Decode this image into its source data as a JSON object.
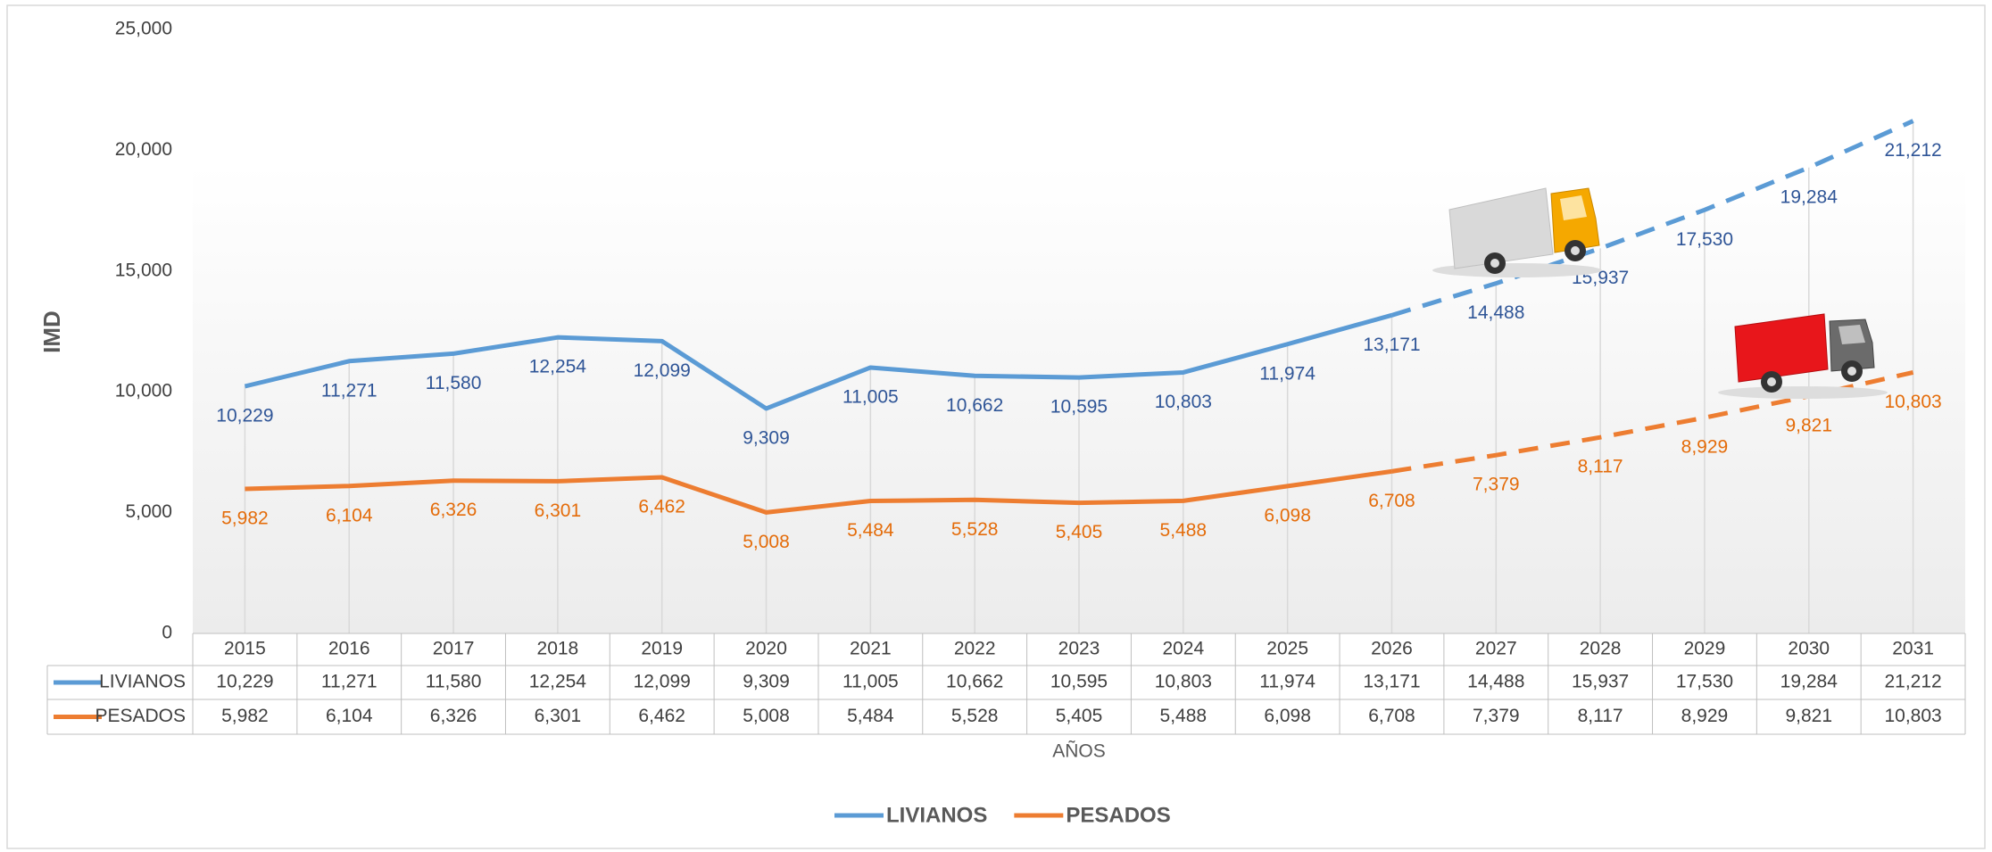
{
  "chart_data": {
    "type": "line",
    "y_label": "IMD",
    "x_label": "AÑOS",
    "categories": [
      "2015",
      "2016",
      "2017",
      "2018",
      "2019",
      "2020",
      "2021",
      "2022",
      "2023",
      "2024",
      "2025",
      "2026",
      "2027",
      "2028",
      "2029",
      "2030",
      "2031"
    ],
    "forecast_start": "2026",
    "series": [
      {
        "name": "LIVIANOS",
        "color": "#5b9bd5",
        "label_color": "#2f5597",
        "values": [
          10229,
          11271,
          11580,
          12254,
          12099,
          9309,
          11005,
          10662,
          10595,
          10803,
          11974,
          13171,
          14488,
          15937,
          17530,
          19284,
          21212
        ],
        "value_labels": [
          "10,229",
          "11,271",
          "11,580",
          "12,254",
          "12,099",
          "9,309",
          "11,005",
          "10,662",
          "10,595",
          "10,803",
          "11,974",
          "13,171",
          "14,488",
          "15,937",
          "17,530",
          "19,284",
          "21,212"
        ]
      },
      {
        "name": "PESADOS",
        "color": "#ed7d31",
        "label_color": "#e46c0a",
        "values": [
          5982,
          6104,
          6326,
          6301,
          6462,
          5008,
          5484,
          5528,
          5405,
          5488,
          6098,
          6708,
          7379,
          8117,
          8929,
          9821,
          10803
        ],
        "value_labels": [
          "5,982",
          "6,104",
          "6,326",
          "6,301",
          "6,462",
          "5,008",
          "5,484",
          "5,528",
          "5,405",
          "5,488",
          "6,098",
          "6,708",
          "7,379",
          "8,117",
          "8,929",
          "9,821",
          "10,803"
        ]
      }
    ],
    "ylim": [
      0,
      25000
    ],
    "yticks": [
      0,
      {
        "value": 5000,
        "label": "5,000"
      },
      {
        "value": 10000,
        "label": "10,000"
      },
      {
        "value": 15000,
        "label": "15,000"
      },
      {
        "value": 20000,
        "label": "20,000"
      },
      {
        "value": 25000,
        "label": "25,000"
      }
    ],
    "legend": "bottom",
    "data_table": true
  }
}
